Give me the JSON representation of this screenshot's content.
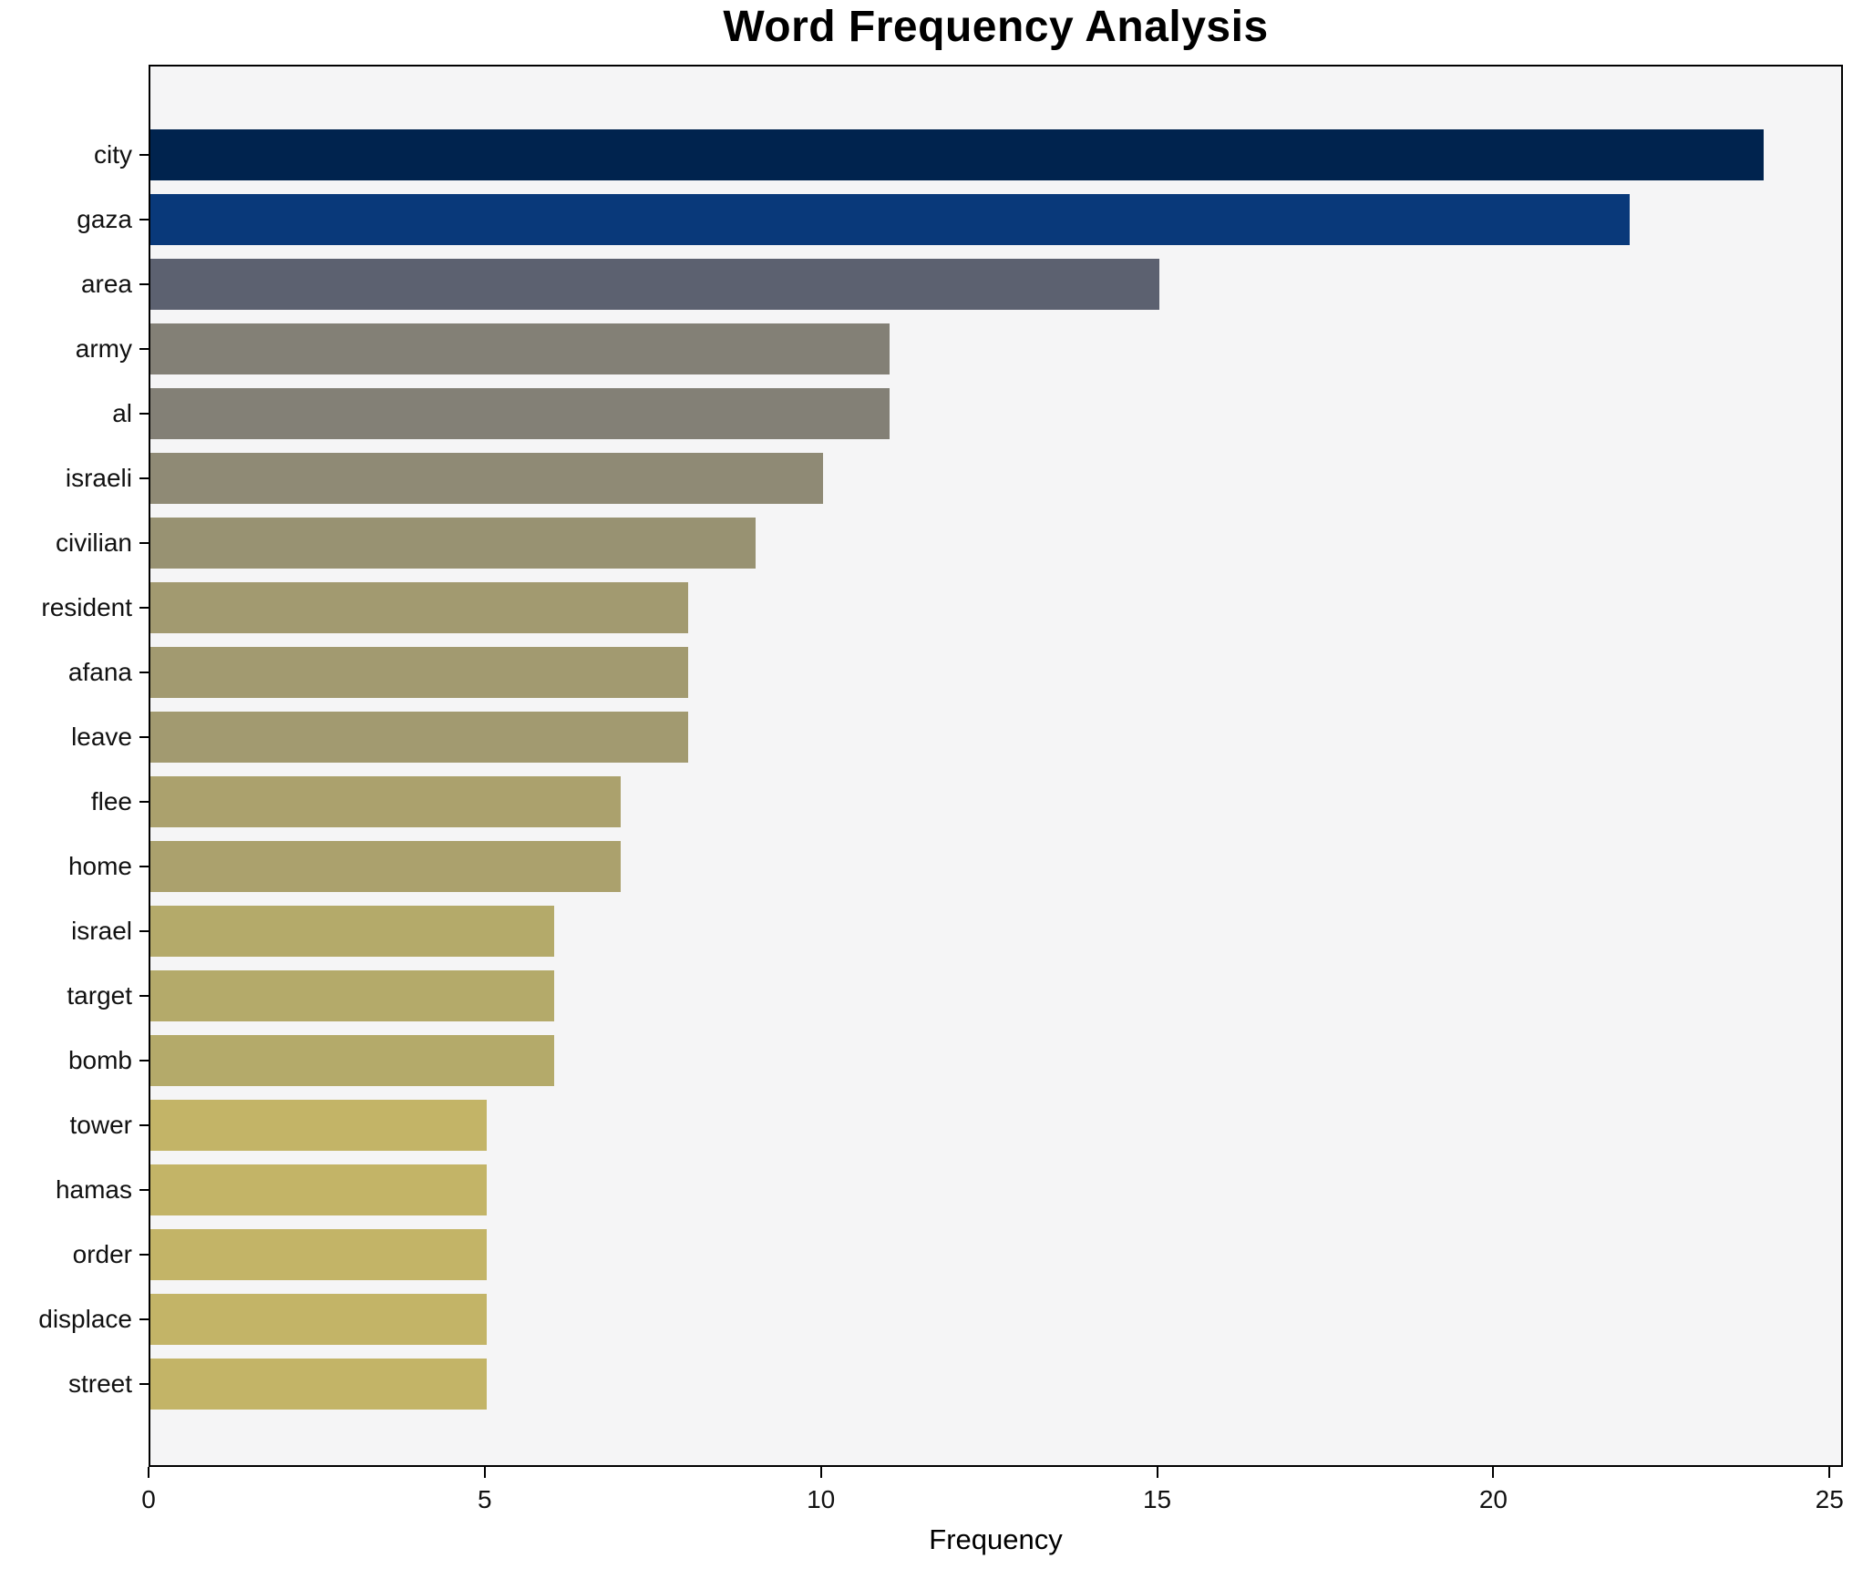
{
  "chart_data": {
    "type": "bar",
    "orientation": "horizontal",
    "title": "Word Frequency Analysis",
    "xlabel": "Frequency",
    "ylabel": "",
    "xlim": [
      0,
      25.2
    ],
    "xticks": [
      0,
      5,
      10,
      15,
      20,
      25
    ],
    "grid": false,
    "legend": false,
    "categories": [
      "city",
      "gaza",
      "area",
      "army",
      "al",
      "israeli",
      "civilian",
      "resident",
      "afana",
      "leave",
      "flee",
      "home",
      "israel",
      "target",
      "bomb",
      "tower",
      "hamas",
      "order",
      "displace",
      "street"
    ],
    "values": [
      24,
      22,
      15,
      11,
      11,
      10,
      9,
      8,
      8,
      8,
      7,
      7,
      6,
      6,
      6,
      5,
      5,
      5,
      5,
      5
    ],
    "bar_colors": [
      "#00234e",
      "#09397a",
      "#5c6170",
      "#838076",
      "#838076",
      "#8f8a75",
      "#989272",
      "#a29a70",
      "#a29a70",
      "#a29a70",
      "#aba16d",
      "#aba16d",
      "#b4aa6a",
      "#b4aa6a",
      "#b4aa6a",
      "#c3b467",
      "#c3b467",
      "#c3b467",
      "#c3b467",
      "#c3b467"
    ],
    "plot_bg": "#f5f5f6",
    "figure_bg": "#ffffff",
    "spine_color": "#000000",
    "text_color": "#111111"
  }
}
